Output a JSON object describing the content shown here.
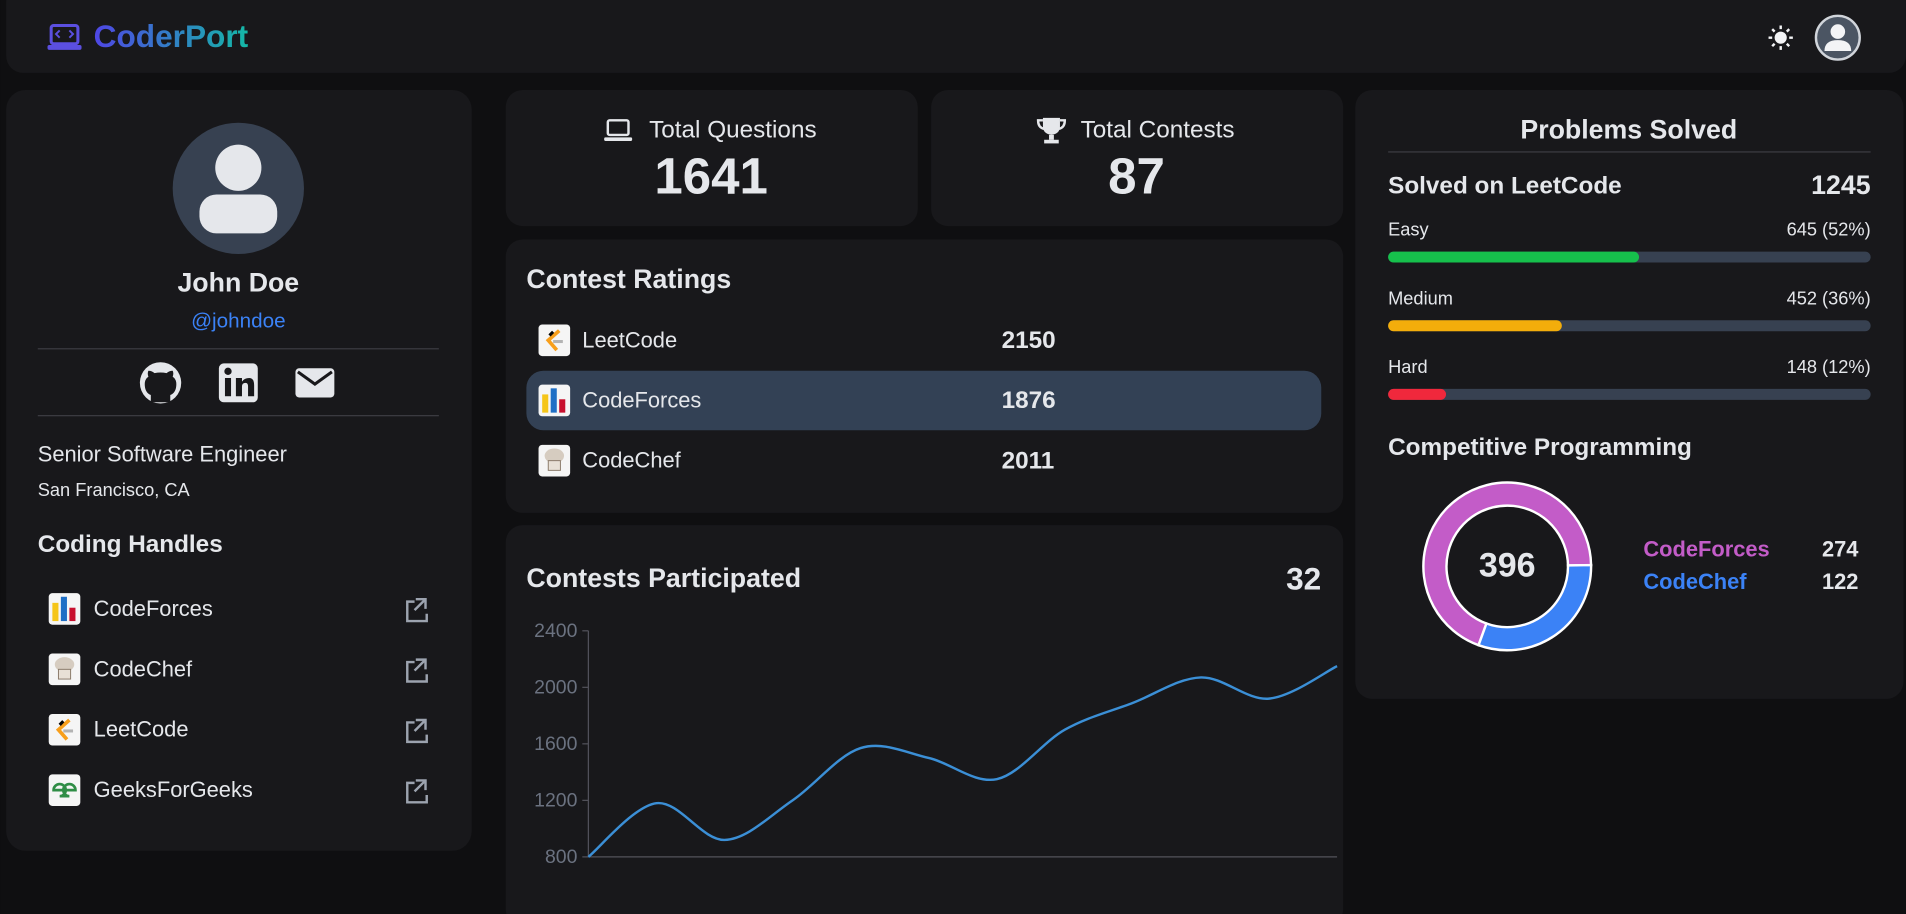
{
  "navbar": {
    "brand": "CoderPort"
  },
  "profile": {
    "name": "John Doe",
    "handle": "@johndoe",
    "title": "Senior Software Engineer",
    "location": "San Francisco, CA"
  },
  "coding_handles": {
    "title": "Coding Handles",
    "items": [
      "CodeForces",
      "CodeChef",
      "LeetCode",
      "GeeksForGeeks"
    ]
  },
  "stats": [
    {
      "label": "Total Questions",
      "value": 1641
    },
    {
      "label": "Total Contests",
      "value": 87
    }
  ],
  "contest_ratings": {
    "title": "Contest Ratings",
    "rows": [
      {
        "platform": "LeetCode",
        "rating": 2150
      },
      {
        "platform": "CodeForces",
        "rating": 1876
      },
      {
        "platform": "CodeChef",
        "rating": 2011
      }
    ]
  },
  "contests_participated": {
    "title": "Contests Participated",
    "count": 32,
    "chart": {
      "type": "line",
      "color": "#3b8fd6",
      "values": [
        800,
        1180,
        920,
        1200,
        1570,
        1500,
        1350,
        1700,
        1890,
        2070,
        1920,
        2150
      ],
      "ylim": [
        800,
        2400
      ],
      "yticks": [
        800,
        1200,
        1600,
        2000,
        2400
      ]
    }
  },
  "problems_solved": {
    "title": "Problems Solved",
    "leetcode": {
      "label": "Solved on LeetCode",
      "total": 1245,
      "levels": [
        {
          "name": "Easy",
          "value": 645,
          "percent": 52,
          "value_label": "645 (52%)",
          "color": "#16c04c"
        },
        {
          "name": "Medium",
          "value": 452,
          "percent": 36,
          "value_label": "452 (36%)",
          "color": "#f3ad0b"
        },
        {
          "name": "Hard",
          "value": 148,
          "percent": 12,
          "value_label": "148 (12%)",
          "color": "#f0283c"
        }
      ]
    },
    "competitive": {
      "title": "Competitive Programming",
      "type": "pie",
      "total": 396,
      "series": [
        {
          "name": "CodeForces",
          "value": 274,
          "color": "#c35cc8"
        },
        {
          "name": "CodeChef",
          "value": 122,
          "color": "#3b82f6"
        }
      ]
    }
  }
}
